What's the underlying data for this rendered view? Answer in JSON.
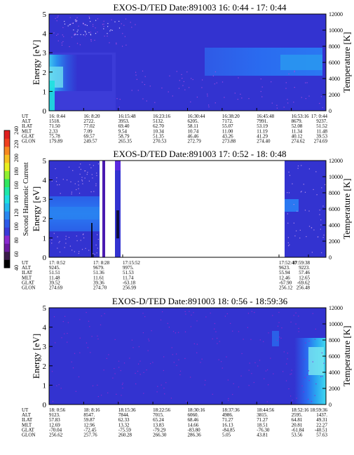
{
  "colorbar": {
    "label": "Second Harmonic Current",
    "ticks": [
      "40",
      "60",
      "80",
      "100",
      "120",
      "140",
      "160",
      "180",
      "200",
      "220",
      "240"
    ],
    "colors": [
      "#000000",
      "#3a1a4a",
      "#6a1aa0",
      "#8a2bd0",
      "#3a3ad8",
      "#2d5ae8",
      "#2a88f0",
      "#22b8ee",
      "#1ee0e0",
      "#1ee8a8",
      "#30e860",
      "#90f030",
      "#e8f020",
      "#f8c020",
      "#f88820",
      "#f04020",
      "#e02020"
    ]
  },
  "panels": [
    {
      "title": "EXOS-D/TED    Date:891003  16: 0:44 - 17: 0:44",
      "y_left_label": "Energy [eV]",
      "y_right_label": "Temperature [K]",
      "y_left_ticks": [
        "0",
        "1",
        "2",
        "3",
        "4",
        "5"
      ],
      "y_right_ticks": [
        "0",
        "2000",
        "4000",
        "6000",
        "8000",
        "10000",
        "12000"
      ],
      "rows": [
        {
          "label": "UT",
          "values": [
            "16: 0:44",
            "16: 8:20",
            "16:15:48",
            "16:23:16",
            "16:30:44",
            "16:38:20",
            "16:45:48",
            "16:53:16",
            "17: 0:44"
          ]
        },
        {
          "label": "ALT",
          "values": [
            "1518.",
            "2722.",
            "3953.",
            "5132.",
            "6205.",
            "7172.",
            "7991.",
            "8679.",
            "9237."
          ]
        },
        {
          "label": "ILAT",
          "values": [
            "71.50",
            "77.02",
            "69.40",
            "62.70",
            "58.11",
            "55.07",
            "53.19",
            "52.08",
            "51.52"
          ]
        },
        {
          "label": "MLT",
          "values": [
            "2.33",
            "7.09",
            "9.54",
            "10.34",
            "10.74",
            "11.00",
            "11.19",
            "11.34",
            "11.48"
          ]
        },
        {
          "label": "GLAT",
          "values": [
            "75.78",
            "69.57",
            "58.79",
            "51.35",
            "46.46",
            "43.26",
            "41.29",
            "40.12",
            "39.53"
          ]
        },
        {
          "label": "GLON",
          "values": [
            "179.89",
            "249.57",
            "265.35",
            "270.53",
            "272.79",
            "273.88",
            "274.40",
            "274.62",
            "274.69"
          ]
        }
      ]
    },
    {
      "title": "EXOS-D/TED    Date:891003  17: 0:52 - 18: 0:48",
      "y_left_label": "Energy [eV]",
      "y_right_label": "Temperature [K]",
      "y_left_ticks": [
        "0",
        "1",
        "2",
        "3",
        "4",
        "5"
      ],
      "y_right_ticks": [
        "0",
        "2000",
        "4000",
        "6000",
        "8000",
        "10000",
        "12000"
      ],
      "rows": [
        {
          "label": "UT",
          "values": [
            "17: 0:52",
            "17: 8:28",
            "17:15:52",
            "17:52:40",
            "17:59:38"
          ]
        },
        {
          "label": "ALT",
          "values": [
            "9245.",
            "9679.",
            "9975.",
            "9623.",
            "9223."
          ]
        },
        {
          "label": "ILAT",
          "values": [
            "51.51",
            "51.36",
            "51.53",
            "55.94",
            "57.46"
          ]
        },
        {
          "label": "MLT",
          "values": [
            "11.48",
            "11.61",
            "11.74",
            "12.46",
            "12.65"
          ]
        },
        {
          "label": "GLAT",
          "values": [
            "39.52",
            "39.36",
            "-63.18",
            "-67.90",
            "-69.62"
          ]
        },
        {
          "label": "GLON",
          "values": [
            "274.69",
            "274.70",
            "256.99",
            "256.12",
            "256.48"
          ]
        }
      ]
    },
    {
      "title": "EXOS-D/TED    Date:891003  18: 0:56 - 18:59:36",
      "y_left_label": "Energy [eV]",
      "y_right_label": "Temperature [K]",
      "y_left_ticks": [
        "0",
        "1",
        "2",
        "3",
        "4",
        "5"
      ],
      "y_right_ticks": [
        "0",
        "2000",
        "4000",
        "6000",
        "8000",
        "10000",
        "12000"
      ],
      "rows": [
        {
          "label": "UT",
          "values": [
            "18: 0:56",
            "18: 8:16",
            "18:15:36",
            "18:22:56",
            "18:30:16",
            "18:37:36",
            "18:44:56",
            "18:52:16",
            "18:59:36"
          ]
        },
        {
          "label": "ALT",
          "values": [
            "9123.",
            "8547.",
            "7844.",
            "7015.",
            "6060.",
            "4986.",
            "3815.",
            "2595.",
            "1437."
          ]
        },
        {
          "label": "ILAT",
          "values": [
            "57.83",
            "59.87",
            "62.33",
            "65.24",
            "68.46",
            "71.27",
            "71.27",
            "64.81",
            "49.31"
          ]
        },
        {
          "label": "MLT",
          "values": [
            "12.69",
            "12.96",
            "13.32",
            "13.83",
            "14.66",
            "16.13",
            "18.51",
            "20.81",
            "22.27"
          ]
        },
        {
          "label": "GLAT",
          "values": [
            "-70.04",
            "-72.45",
            "-75.59",
            "-79.29",
            "-83.80",
            "-84.85",
            "-76.30",
            "-61.84",
            "-40.51"
          ]
        },
        {
          "label": "GLON",
          "values": [
            "256.62",
            "257.76",
            "260.28",
            "266.30",
            "286.36",
            "5.05",
            "43.81",
            "53.56",
            "57.63"
          ]
        }
      ]
    }
  ]
}
